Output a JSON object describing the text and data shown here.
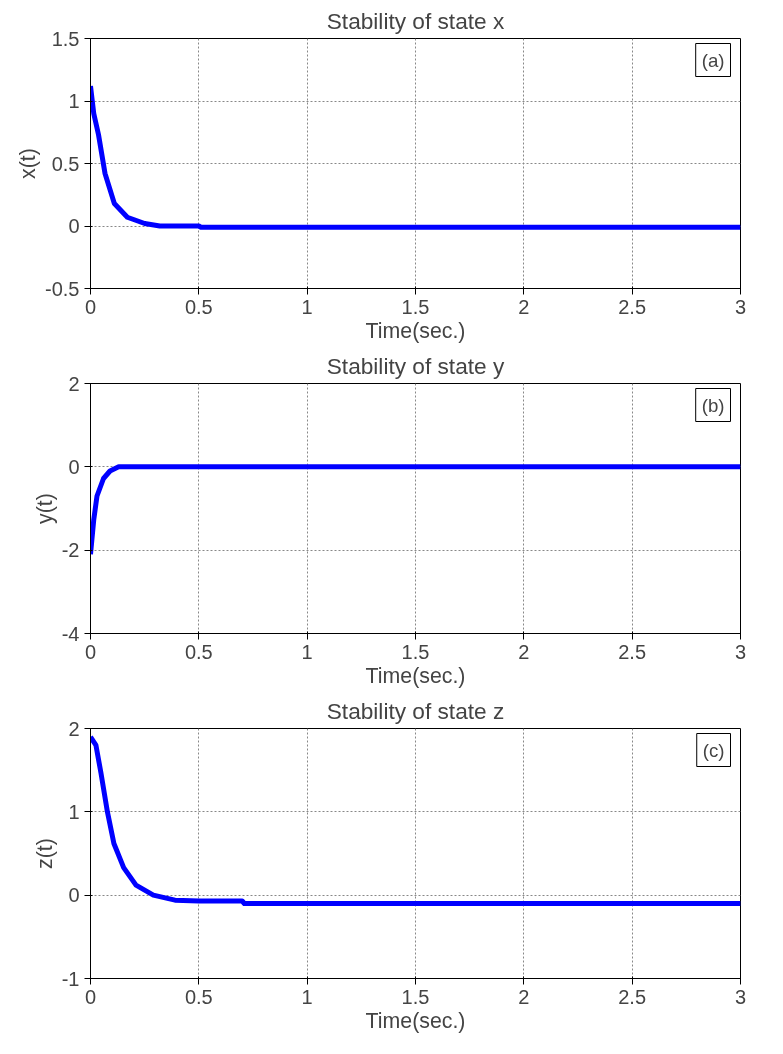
{
  "chart_data": [
    {
      "type": "line",
      "title": "Stability of state x",
      "xlabel": "Time(sec.)",
      "ylabel": "x(t)",
      "annotations": [
        "(a)"
      ],
      "x": [
        0,
        0.015,
        0.037,
        0.067,
        0.11,
        0.17,
        0.25,
        0.32,
        0.5,
        0.51,
        3
      ],
      "series": [
        {
          "color": "#0000ff",
          "values": [
            1.12,
            0.9,
            0.73,
            0.42,
            0.18,
            0.07,
            0.02,
            0,
            0,
            -0.01,
            -0.01
          ]
        }
      ],
      "xlim": [
        0,
        3
      ],
      "ylim": [
        -0.5,
        1.5
      ],
      "xticks": [
        0,
        0.5,
        1,
        1.5,
        2,
        2.5,
        3
      ],
      "yticks": [
        -0.5,
        0,
        0.5,
        1,
        1.5
      ],
      "grid": true
    },
    {
      "type": "line",
      "title": "Stability of state y",
      "xlabel": "Time(sec.)",
      "ylabel": "y(t)",
      "annotations": [
        "(b)"
      ],
      "x": [
        0,
        0.015,
        0.03,
        0.06,
        0.09,
        0.13,
        3
      ],
      "series": [
        {
          "color": "#0000ff",
          "values": [
            -2.1,
            -1.27,
            -0.7,
            -0.28,
            -0.1,
            0,
            0
          ]
        }
      ],
      "xlim": [
        0,
        3
      ],
      "ylim": [
        -4,
        2
      ],
      "xticks": [
        0,
        0.5,
        1,
        1.5,
        2,
        2.5,
        3
      ],
      "yticks": [
        -4,
        -2,
        0,
        2
      ],
      "grid": true
    },
    {
      "type": "line",
      "title": "Stability of state z",
      "xlabel": "Time(sec.)",
      "ylabel": "z(t)",
      "annotations": [
        "(c)"
      ],
      "x": [
        0,
        0.025,
        0.048,
        0.078,
        0.108,
        0.153,
        0.21,
        0.29,
        0.39,
        0.5,
        0.7,
        0.71,
        3
      ],
      "series": [
        {
          "color": "#0000ff",
          "values": [
            1.9,
            1.8,
            1.47,
            1.0,
            0.62,
            0.33,
            0.12,
            0,
            -0.06,
            -0.07,
            -0.07,
            -0.1,
            -0.1
          ]
        }
      ],
      "xlim": [
        0,
        3
      ],
      "ylim": [
        -1,
        2
      ],
      "xticks": [
        0,
        0.5,
        1,
        1.5,
        2,
        2.5,
        3
      ],
      "yticks": [
        -1,
        0,
        1,
        2
      ],
      "grid": true
    }
  ]
}
